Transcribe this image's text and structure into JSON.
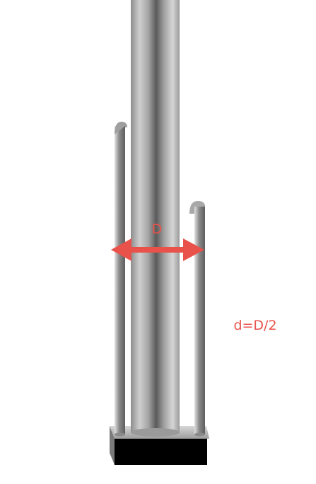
{
  "labels": {
    "diameter": "D",
    "relation": "d=D/2"
  },
  "colors": {
    "annotation": "#e8524a",
    "base": "#000000",
    "base_top": "#bdbdbd",
    "metal_dark": "#6f6f6f",
    "metal_mid": "#a9a9a9",
    "metal_light": "#e6e6e6"
  }
}
